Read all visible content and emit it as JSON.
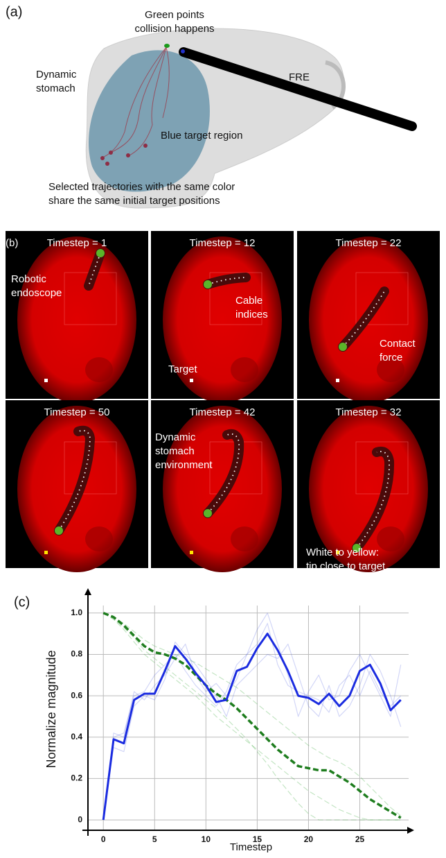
{
  "panel_a": {
    "tag": "(a)",
    "labels": [
      [
        "Green points",
        "collision happens"
      ],
      [
        "Dynamic",
        "stomach"
      ],
      [
        "FRE"
      ],
      [
        "Blue target region"
      ],
      [
        "Selected trajectories with the same color",
        "share the same initial target positions"
      ]
    ]
  },
  "panel_b": {
    "tag": "(b)",
    "panels": [
      {
        "title": "Timestep = 1",
        "annotations": [
          [
            "Robotic",
            "endoscope"
          ]
        ]
      },
      {
        "title": "Timestep = 12",
        "annotations": [
          [
            "Cable",
            "indices"
          ],
          [
            "Target"
          ]
        ]
      },
      {
        "title": "Timestep = 22",
        "annotations": [
          [
            "Contact",
            "force"
          ]
        ]
      },
      {
        "title": "Timestep = 50",
        "annotations": []
      },
      {
        "title": "Timestep = 42",
        "annotations": [
          [
            "Dynamic",
            "stomach",
            "environment"
          ]
        ]
      },
      {
        "title": "Timestep = 32",
        "annotations": [
          [
            "White to yellow:",
            "tip close to target"
          ]
        ]
      }
    ]
  },
  "panel_c": {
    "tag": "(c)"
  },
  "chart_data": {
    "type": "line",
    "xlabel": "Timestep",
    "ylabel": "Normalize magnitude",
    "x": [
      0,
      1,
      2,
      3,
      4,
      5,
      6,
      7,
      8,
      9,
      10,
      11,
      12,
      13,
      14,
      15,
      16,
      17,
      18,
      19,
      20,
      21,
      22,
      23,
      24,
      25,
      26,
      27,
      28,
      29
    ],
    "xlim": [
      -1.5,
      30.3
    ],
    "xticks": [
      0,
      5,
      10,
      15,
      20,
      25
    ],
    "ylim": [
      -0.05,
      1.12
    ],
    "yticks": [
      0,
      0.2,
      0.4,
      0.6,
      0.8,
      {
        "value": 1,
        "label": "1.0"
      }
    ],
    "grid": true,
    "series": [
      {
        "color": "#4a5be0",
        "opacity": 0.25,
        "width": 1.2,
        "dashed": false,
        "values": [
          0,
          0.4,
          0.42,
          0.6,
          0.62,
          0.7,
          0.75,
          0.8,
          0.72,
          0.65,
          0.6,
          0.55,
          0.62,
          0.75,
          0.8,
          0.92,
          1.0,
          0.85,
          0.7,
          0.5,
          0.62,
          0.7,
          0.58,
          0.6,
          0.72,
          0.8,
          0.7,
          0.6,
          0.5,
          0.75
        ]
      },
      {
        "color": "#4a5be0",
        "opacity": 0.25,
        "width": 1.2,
        "dashed": false,
        "values": [
          0,
          0.35,
          0.33,
          0.55,
          0.6,
          0.58,
          0.68,
          0.86,
          0.8,
          0.75,
          0.68,
          0.6,
          0.5,
          0.65,
          0.7,
          0.75,
          0.8,
          0.78,
          0.85,
          0.7,
          0.55,
          0.5,
          0.65,
          0.5,
          0.55,
          0.65,
          0.8,
          0.72,
          0.6,
          0.45
        ]
      },
      {
        "color": "#4a5be0",
        "opacity": 0.25,
        "width": 1.2,
        "dashed": false,
        "values": [
          0,
          0.42,
          0.4,
          0.62,
          0.58,
          0.65,
          0.7,
          0.78,
          0.85,
          0.7,
          0.62,
          0.66,
          0.6,
          0.68,
          0.8,
          0.85,
          0.95,
          0.75,
          0.65,
          0.62,
          0.6,
          0.58,
          0.52,
          0.65,
          0.7,
          0.6,
          0.72,
          0.62,
          0.55,
          0.6
        ]
      },
      {
        "color": "#3aa83a",
        "opacity": 0.3,
        "width": 1.2,
        "dashed": true,
        "values": [
          1,
          0.97,
          0.92,
          0.86,
          0.8,
          0.76,
          0.72,
          0.68,
          0.64,
          0.6,
          0.55,
          0.5,
          0.46,
          0.42,
          0.38,
          0.34,
          0.3,
          0.26,
          0.22,
          0.18,
          0.14,
          0.11,
          0.08,
          0.05,
          0.03,
          0.01,
          0,
          0,
          0,
          0
        ]
      },
      {
        "color": "#3aa83a",
        "opacity": 0.3,
        "width": 1.2,
        "dashed": true,
        "values": [
          1,
          0.98,
          0.95,
          0.91,
          0.87,
          0.84,
          0.82,
          0.8,
          0.78,
          0.76,
          0.73,
          0.7,
          0.67,
          0.64,
          0.6,
          0.56,
          0.52,
          0.48,
          0.44,
          0.4,
          0.36,
          0.33,
          0.3,
          0.28,
          0.25,
          0.21,
          0.16,
          0.11,
          0.06,
          0.02
        ]
      },
      {
        "color": "#3aa83a",
        "opacity": 0.3,
        "width": 1.2,
        "dashed": true,
        "values": [
          1,
          0.97,
          0.93,
          0.88,
          0.82,
          0.78,
          0.74,
          0.7,
          0.66,
          0.62,
          0.58,
          0.54,
          0.49,
          0.44,
          0.39,
          0.33,
          0.27,
          0.2,
          0.14,
          0.08,
          0.03,
          0,
          0,
          0,
          0,
          0,
          0,
          0,
          0,
          0
        ]
      },
      {
        "color": "#1e7d1e",
        "opacity": 1,
        "width": 3.5,
        "dashed": true,
        "values": [
          1,
          0.98,
          0.94,
          0.89,
          0.84,
          0.81,
          0.8,
          0.78,
          0.75,
          0.7,
          0.65,
          0.61,
          0.58,
          0.54,
          0.49,
          0.44,
          0.39,
          0.34,
          0.3,
          0.26,
          0.25,
          0.24,
          0.24,
          0.21,
          0.18,
          0.14,
          0.1,
          0.07,
          0.04,
          0.01
        ]
      },
      {
        "color": "#1a2be0",
        "opacity": 1,
        "width": 3,
        "dashed": false,
        "values": [
          0,
          0.39,
          0.37,
          0.58,
          0.61,
          0.61,
          0.72,
          0.84,
          0.78,
          0.71,
          0.65,
          0.57,
          0.58,
          0.72,
          0.74,
          0.83,
          0.9,
          0.82,
          0.72,
          0.6,
          0.59,
          0.56,
          0.61,
          0.55,
          0.6,
          0.72,
          0.75,
          0.66,
          0.53,
          0.58
        ]
      }
    ]
  }
}
